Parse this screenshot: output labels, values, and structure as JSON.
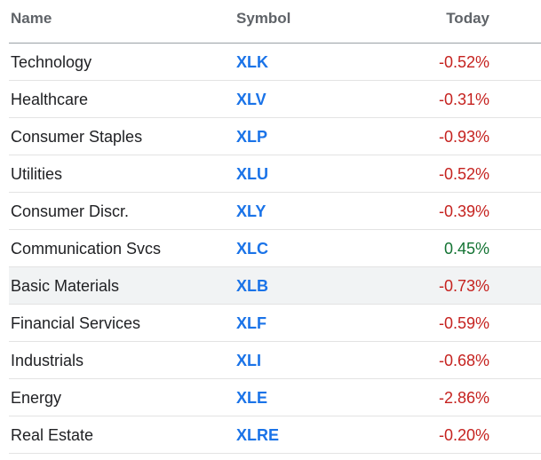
{
  "table": {
    "headers": {
      "name": "Name",
      "symbol": "Symbol",
      "today": "Today"
    },
    "rows": [
      {
        "name": "Technology",
        "symbol": "XLK",
        "today": "-0.52%",
        "direction": "down"
      },
      {
        "name": "Healthcare",
        "symbol": "XLV",
        "today": "-0.31%",
        "direction": "down"
      },
      {
        "name": "Consumer Staples",
        "symbol": "XLP",
        "today": "-0.93%",
        "direction": "down"
      },
      {
        "name": "Utilities",
        "symbol": "XLU",
        "today": "-0.52%",
        "direction": "down"
      },
      {
        "name": "Consumer Discr.",
        "symbol": "XLY",
        "today": "-0.39%",
        "direction": "down"
      },
      {
        "name": "Communication Svcs",
        "symbol": "XLC",
        "today": "0.45%",
        "direction": "up"
      },
      {
        "name": "Basic Materials",
        "symbol": "XLB",
        "today": "-0.73%",
        "direction": "down",
        "highlighted": true
      },
      {
        "name": "Financial Services",
        "symbol": "XLF",
        "today": "-0.59%",
        "direction": "down"
      },
      {
        "name": "Industrials",
        "symbol": "XLI",
        "today": "-0.68%",
        "direction": "down"
      },
      {
        "name": "Energy",
        "symbol": "XLE",
        "today": "-2.86%",
        "direction": "down"
      },
      {
        "name": "Real Estate",
        "symbol": "XLRE",
        "today": "-0.20%",
        "direction": "down"
      }
    ]
  },
  "colors": {
    "negative": "#c5221f",
    "positive": "#137333",
    "link": "#1a73e8",
    "header_text": "#5f6368",
    "highlight_row": "#f1f3f4"
  }
}
